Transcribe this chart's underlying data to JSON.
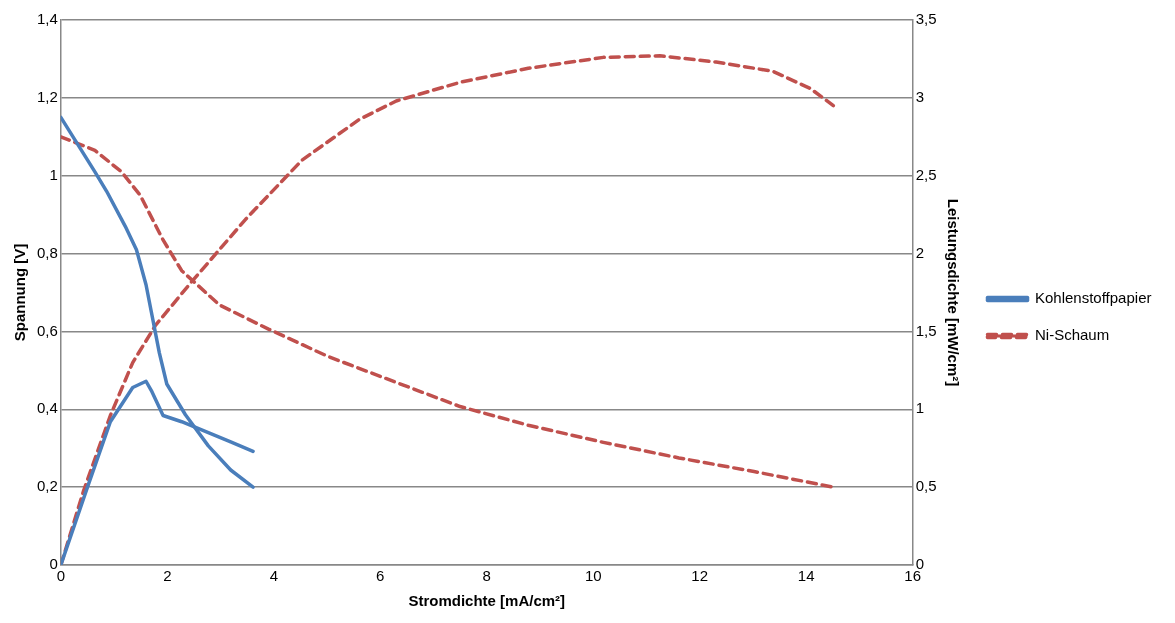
{
  "chart_data": {
    "type": "line",
    "xlabel": "Stromdichte [mA/cm²]",
    "ylabel": "Spannung [V]",
    "y2label": "Leistungsdichte [mW/cm²]",
    "xlim": [
      0,
      16
    ],
    "xticks": [
      0,
      2,
      4,
      6,
      8,
      10,
      12,
      14,
      16
    ],
    "ylim": [
      0,
      1.4
    ],
    "yticks": [
      0,
      {
        "value": 0.2,
        "label": "0,2"
      },
      {
        "value": 0.4,
        "label": "0,4"
      },
      {
        "value": 0.6,
        "label": "0,6"
      },
      {
        "value": 0.8,
        "label": "0,8"
      },
      1,
      {
        "value": 1.2,
        "label": "1,2"
      },
      {
        "value": 1.4,
        "label": "1,4"
      }
    ],
    "y2lim": [
      0,
      3.5
    ],
    "y2ticks": [
      0,
      {
        "value": 0.5,
        "label": "0,5"
      },
      1,
      {
        "value": 1.5,
        "label": "1,5"
      },
      2,
      {
        "value": 2.5,
        "label": "2,5"
      },
      3,
      {
        "value": 3.5,
        "label": "3,5"
      }
    ],
    "grid": "y",
    "legend": "right",
    "marker": "none",
    "series": [
      {
        "name": "Kohlenstoffpapier",
        "color": "#4a7ebb",
        "line_style": "solid",
        "x": [
          0,
          0.64,
          0.86,
          1.21,
          1.42,
          1.6,
          1.7,
          1.85,
          1.99,
          2.34,
          2.77,
          3.19,
          3.61
        ],
        "values": [
          1.15,
          1.01,
          0.96,
          0.87,
          0.81,
          0.72,
          0.65,
          0.545,
          0.465,
          0.386,
          0.306,
          0.244,
          0.2
        ]
      },
      {
        "color": "#4a7ebb",
        "line_style": "solid",
        "axis": "y2",
        "x": [
          0,
          0.5,
          0.93,
          1.35,
          1.6,
          1.7,
          1.92,
          2.27,
          2.77,
          3.19,
          3.61
        ],
        "values": [
          0,
          0.5,
          0.92,
          1.14,
          1.18,
          1.12,
          0.96,
          0.92,
          0.85,
          0.79,
          0.73
        ]
      },
      {
        "name": "Ni-Schaum",
        "color": "#c0504d",
        "line_style": "dashed",
        "x": [
          0,
          0.64,
          1.14,
          1.49,
          1.92,
          2.27,
          2.98,
          3.9,
          5.03,
          6.3,
          7.5,
          8.78,
          10.19,
          11.61,
          13.02,
          14.51
        ],
        "values": [
          1.1,
          1.065,
          1.01,
          0.95,
          0.835,
          0.756,
          0.668,
          0.606,
          0.535,
          0.469,
          0.407,
          0.359,
          0.315,
          0.275,
          0.24,
          0.2
        ]
      },
      {
        "color": "#c0504d",
        "line_style": "dashed",
        "axis": "y2",
        "x": [
          0,
          0.43,
          0.93,
          1.35,
          1.78,
          2.41,
          3.47,
          4.53,
          5.6,
          6.3,
          7.5,
          8.78,
          10.19,
          11.25,
          12.31,
          13.38,
          14.08,
          14.51
        ],
        "values": [
          0,
          0.48,
          0.96,
          1.3,
          1.54,
          1.8,
          2.22,
          2.6,
          2.86,
          2.98,
          3.1,
          3.19,
          3.26,
          3.27,
          3.23,
          3.17,
          3.06,
          2.95
        ]
      }
    ]
  }
}
